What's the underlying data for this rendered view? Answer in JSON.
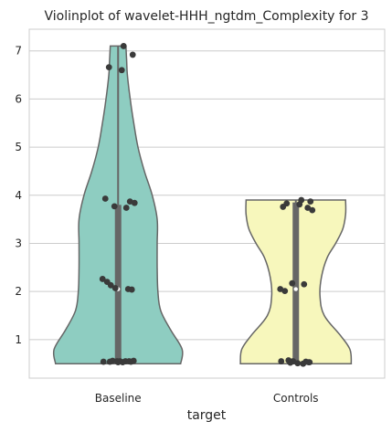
{
  "chart_data": {
    "type": "violin",
    "title": "Violinplot of wavelet-HHH_ngtdm_Complexity for 3",
    "xlabel": "target",
    "ylabel": "",
    "categories": [
      "Baseline",
      "Controls"
    ],
    "ylim": [
      0.2,
      7.45
    ],
    "yticks": [
      1,
      2,
      3,
      4,
      5,
      6,
      7
    ],
    "grid": "horizontal",
    "violins": [
      {
        "category": "Baseline",
        "color": "#8ecdc1",
        "min": 0.5,
        "max": 7.1,
        "q1": 0.55,
        "median": 2.05,
        "q3": 3.8,
        "density_profile": [
          [
            0.5,
            0.88
          ],
          [
            0.8,
            0.9
          ],
          [
            1.2,
            0.74
          ],
          [
            1.6,
            0.6
          ],
          [
            2.0,
            0.56
          ],
          [
            2.5,
            0.55
          ],
          [
            3.0,
            0.55
          ],
          [
            3.5,
            0.55
          ],
          [
            4.0,
            0.48
          ],
          [
            4.5,
            0.37
          ],
          [
            5.0,
            0.28
          ],
          [
            5.5,
            0.22
          ],
          [
            6.0,
            0.17
          ],
          [
            6.5,
            0.13
          ],
          [
            6.8,
            0.12
          ],
          [
            7.1,
            0.11
          ]
        ],
        "points": [
          7.1,
          6.92,
          6.66,
          6.6,
          3.93,
          3.87,
          3.84,
          3.77,
          3.74,
          2.26,
          2.2,
          2.13,
          2.07,
          2.05,
          2.04,
          0.56,
          0.55,
          0.55,
          0.54,
          0.54,
          0.53,
          0.55,
          0.56,
          0.54,
          0.55,
          0.53
        ]
      },
      {
        "category": "Controls",
        "color": "#f7f7bc",
        "min": 0.5,
        "max": 3.9,
        "q1": 0.55,
        "median": 2.05,
        "q3": 3.85,
        "density_profile": [
          [
            0.5,
            0.78
          ],
          [
            0.8,
            0.76
          ],
          [
            1.1,
            0.62
          ],
          [
            1.5,
            0.4
          ],
          [
            1.9,
            0.34
          ],
          [
            2.3,
            0.36
          ],
          [
            2.7,
            0.44
          ],
          [
            3.0,
            0.56
          ],
          [
            3.3,
            0.66
          ],
          [
            3.6,
            0.7
          ],
          [
            3.9,
            0.7
          ]
        ],
        "points": [
          3.9,
          3.87,
          3.83,
          3.81,
          3.76,
          3.74,
          3.69,
          2.17,
          2.15,
          2.05,
          2.01,
          0.57,
          0.55,
          0.54,
          0.53,
          0.52,
          0.51,
          0.5,
          0.55,
          0.53
        ]
      }
    ]
  }
}
